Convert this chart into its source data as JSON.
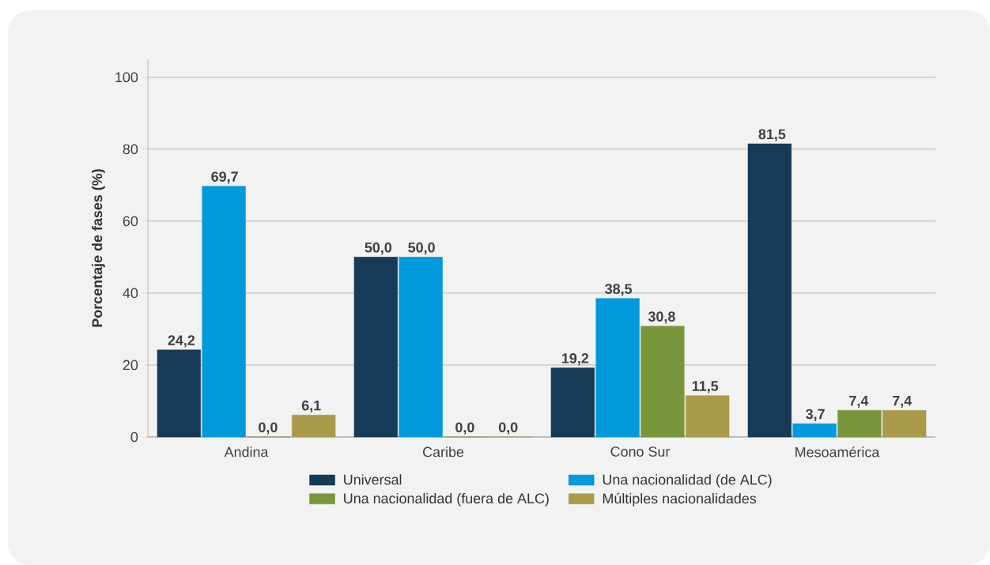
{
  "chart_data": {
    "type": "bar",
    "ylabel": "Porcentaje de fases (%)",
    "categories": [
      "Andina",
      "Caribe",
      "Cono Sur",
      "Mesoamérica"
    ],
    "series": [
      {
        "name": "Universal",
        "color": "#173a56",
        "values": [
          24.2,
          50.0,
          19.2,
          81.5
        ],
        "value_labels": [
          "24,2",
          "50,0",
          "19,2",
          "81,5"
        ]
      },
      {
        "name": "Una nacionalidad (de ALC)",
        "color": "#0099dc",
        "values": [
          69.7,
          50.0,
          38.5,
          3.7
        ],
        "value_labels": [
          "69,7",
          "50,0",
          "38,5",
          "3,7"
        ]
      },
      {
        "name": "Una nacionalidad (fuera de ALC)",
        "color": "#7a963c",
        "values": [
          0.0,
          0.0,
          30.8,
          7.4
        ],
        "value_labels": [
          "0,0",
          "0,0",
          "30,8",
          "7,4"
        ]
      },
      {
        "name": "Múltiples nacionalidades",
        "color": "#a99a4c",
        "values": [
          6.1,
          0.0,
          11.5,
          7.4
        ],
        "value_labels": [
          "6,1",
          "0,0",
          "11,5",
          "7,4"
        ]
      }
    ],
    "ylim": [
      0,
      105
    ],
    "yticks": [
      0,
      20,
      40,
      60,
      80,
      100
    ],
    "grid": "y",
    "legend": "bottom"
  }
}
